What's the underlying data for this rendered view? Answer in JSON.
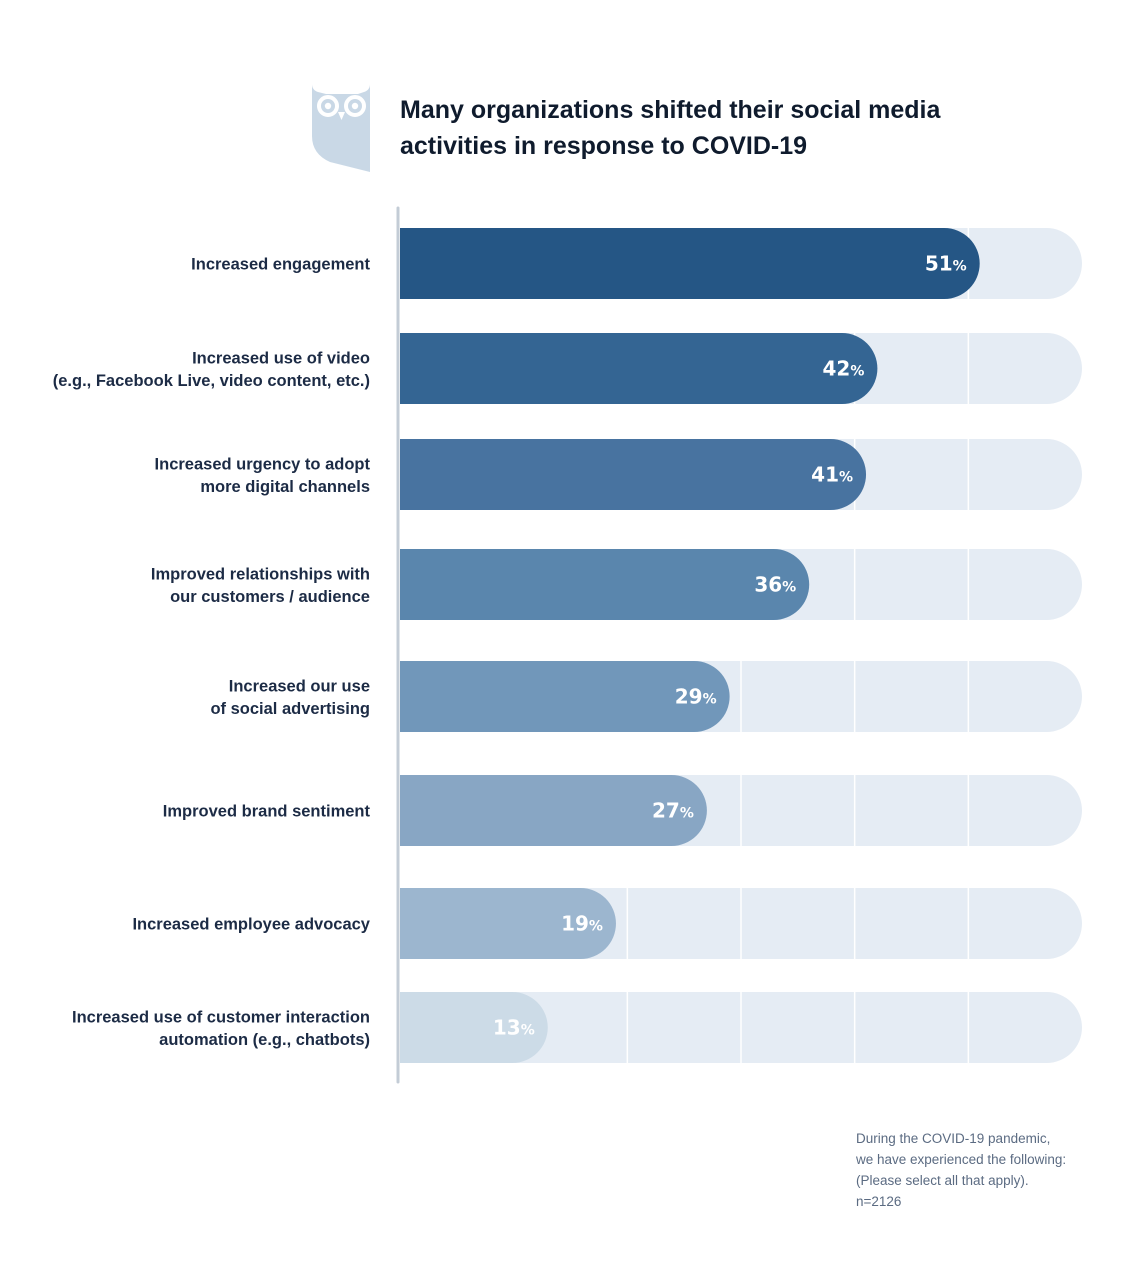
{
  "colors": {
    "track": "#e5ecf4",
    "axis": "#c3ccd6",
    "logo": "#c9d8e6",
    "title": "#0f1b2d",
    "label": "#1c2b45",
    "bars": [
      "#255685",
      "#346593",
      "#4873a0",
      "#5a86ad",
      "#7197ba",
      "#88a6c4",
      "#9cb6cf",
      "#ccdbe7"
    ]
  },
  "logo_icon": "owl-logo-icon",
  "chart_data": {
    "type": "bar",
    "orientation": "horizontal",
    "title": "Many organizations shifted their social media activities in response to COVID-19",
    "xlim": [
      0,
      60
    ],
    "grid": true,
    "categories": [
      [
        "Increased engagement"
      ],
      [
        "Increased use of video",
        "(e.g., Facebook Live, video content, etc.)"
      ],
      [
        "Increased urgency to adopt",
        "more digital channels"
      ],
      [
        "Improved relationships with",
        "our customers / audience"
      ],
      [
        "Increased our use",
        "of social advertising"
      ],
      [
        "Improved brand sentiment"
      ],
      [
        "Increased employee advocacy"
      ],
      [
        "Increased use of customer interaction",
        "automation (e.g., chatbots)"
      ]
    ],
    "values": [
      51,
      42,
      41,
      36,
      29,
      27,
      19,
      13
    ],
    "value_unit": "%"
  },
  "footnote": [
    "During the COVID-19 pandemic,",
    "we have experienced the following:",
    "(Please select all that apply).",
    "n=2126"
  ]
}
